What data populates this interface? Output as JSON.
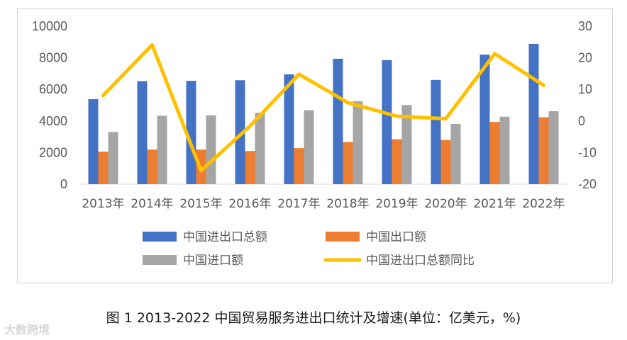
{
  "chart_data": {
    "type": "bar",
    "categories": [
      "2013年",
      "2014年",
      "2015年",
      "2016年",
      "2017年",
      "2018年",
      "2019年",
      "2020年",
      "2021年",
      "2022年"
    ],
    "series": [
      {
        "name": "中国进出口总额",
        "kind": "bar",
        "axis": "left",
        "color": "#4472C4",
        "values": [
          5380,
          6520,
          6540,
          6580,
          6950,
          7940,
          7850,
          6600,
          8200,
          8880
        ]
      },
      {
        "name": "中国出口额",
        "kind": "bar",
        "axis": "left",
        "color": "#ED7D31",
        "values": [
          2060,
          2190,
          2190,
          2100,
          2280,
          2670,
          2840,
          2800,
          3940,
          4240
        ]
      },
      {
        "name": "中国进口额",
        "kind": "bar",
        "axis": "left",
        "color": "#A5A5A5",
        "values": [
          3300,
          4330,
          4360,
          4520,
          4680,
          5250,
          5010,
          3810,
          4270,
          4620
        ]
      },
      {
        "name": "中国进出口总额同比",
        "kind": "line",
        "axis": "right",
        "color": "#FFC000",
        "values": [
          8.1,
          24.1,
          -15.7,
          -1.6,
          14.8,
          5.8,
          1.5,
          0.7,
          21.3,
          11.3
        ]
      }
    ],
    "y_left": {
      "min": 0,
      "max": 10000,
      "ticks": [
        "0",
        "2000",
        "4000",
        "6000",
        "8000",
        "10000"
      ]
    },
    "y_right": {
      "min": -20,
      "max": 30,
      "ticks": [
        "-20",
        "-10",
        "0",
        "10",
        "20",
        "30"
      ]
    },
    "grid": false,
    "legend_position": "bottom"
  },
  "caption": "图 1 2013-2022 中国贸易服务进出口统计及增速(单位：亿美元，%)",
  "watermark": "大数跨境"
}
